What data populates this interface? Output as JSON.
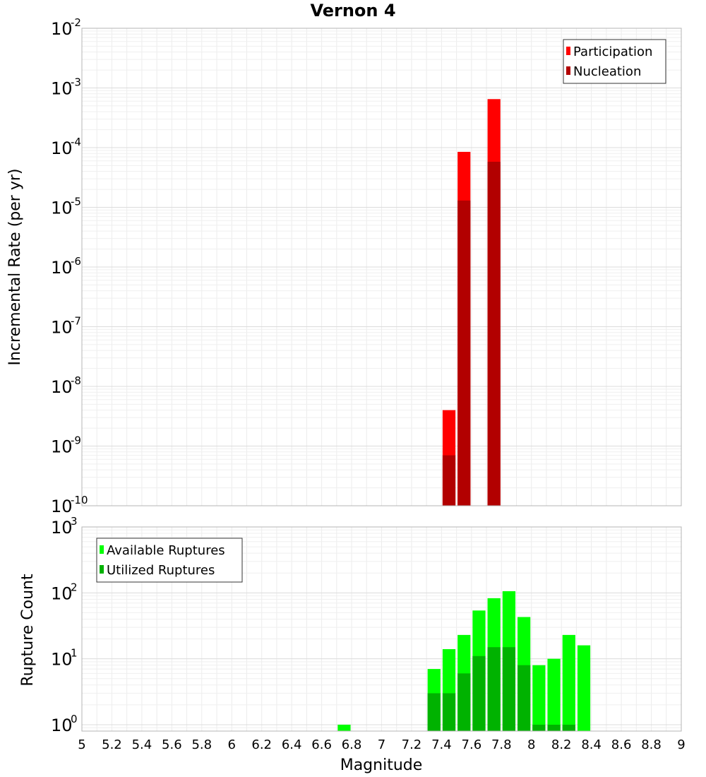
{
  "chart_data": [
    {
      "type": "bar",
      "title": "Vernon 4",
      "xlabel": "Magnitude",
      "ylabel": "Incremental Rate (per yr)",
      "yscale": "log",
      "ylim": [
        1e-10,
        0.01
      ],
      "xlim": [
        5,
        9
      ],
      "bin_width": 0.1,
      "legend_position": "top-right",
      "grid": true,
      "series": [
        {
          "name": "Participation",
          "color": "#ff0000",
          "x": [
            7.45,
            7.55,
            7.75
          ],
          "values": [
            4e-09,
            8.5e-05,
            0.00065
          ]
        },
        {
          "name": "Nucleation",
          "color": "#b20000",
          "x": [
            7.45,
            7.55,
            7.75
          ],
          "values": [
            7e-10,
            1.3e-05,
            5.8e-05
          ]
        }
      ]
    },
    {
      "type": "bar",
      "xlabel": "Magnitude",
      "ylabel": "Rupture Count",
      "yscale": "log",
      "ylim": [
        0.8,
        1000
      ],
      "xlim": [
        5,
        9
      ],
      "bin_width": 0.1,
      "legend_position": "top-left",
      "grid": true,
      "x_tick_labels": [
        "5",
        "5.2",
        "5.4",
        "5.6",
        "5.8",
        "6",
        "6.2",
        "6.4",
        "6.6",
        "6.8",
        "7",
        "7.2",
        "7.4",
        "7.6",
        "7.8",
        "8",
        "8.2",
        "8.4",
        "8.6",
        "8.8",
        "9"
      ],
      "series": [
        {
          "name": "Available Ruptures",
          "color": "#00ff00",
          "x": [
            6.75,
            7.35,
            7.45,
            7.55,
            7.65,
            7.75,
            7.85,
            7.95,
            8.05,
            8.15,
            8.25,
            8.35
          ],
          "values": [
            1,
            7,
            14,
            23,
            54,
            83,
            106,
            43,
            8,
            10,
            23,
            16
          ]
        },
        {
          "name": "Utilized Ruptures",
          "color": "#00b200",
          "x": [
            7.35,
            7.45,
            7.55,
            7.65,
            7.75,
            7.85,
            7.95,
            8.05,
            8.15,
            8.25
          ],
          "values": [
            3,
            3,
            6,
            11,
            15,
            15,
            8,
            1,
            1,
            1
          ]
        }
      ]
    }
  ]
}
